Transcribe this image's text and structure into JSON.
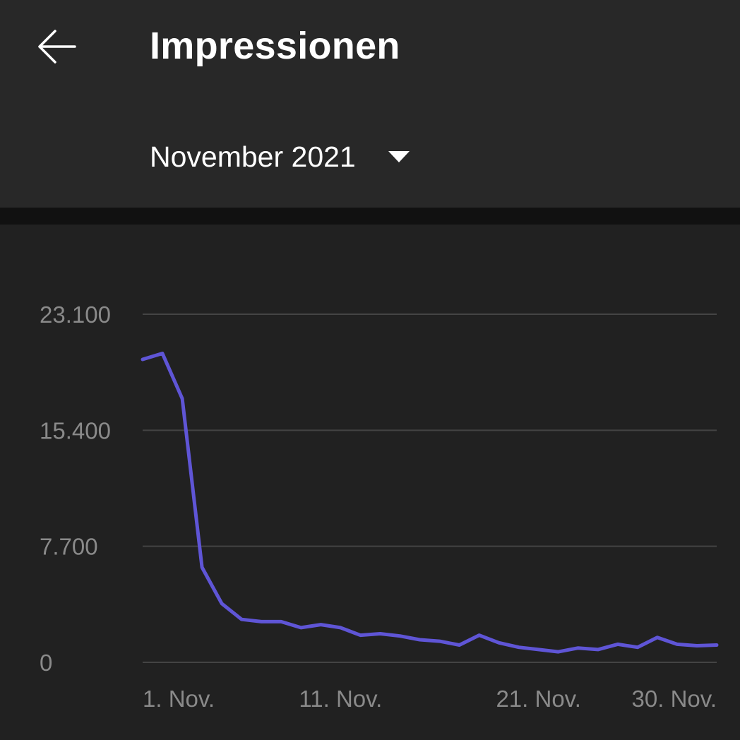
{
  "header": {
    "title": "Impressionen",
    "back_icon": "arrow-left-icon",
    "period": "November 2021",
    "period_icon": "dropdown-triangle-icon"
  },
  "colors": {
    "line": "#5f55d6",
    "grid": "#444444",
    "tick_text": "#8a8a8a",
    "background": "#212121",
    "header_background": "#282828"
  },
  "chart_data": {
    "type": "line",
    "title": "",
    "xlabel": "",
    "ylabel": "",
    "ylim": [
      0,
      23100
    ],
    "xlim": [
      1,
      30
    ],
    "y_ticks": [
      {
        "value": 0,
        "label": "0"
      },
      {
        "value": 7700,
        "label": "7.700"
      },
      {
        "value": 15400,
        "label": "15.400"
      },
      {
        "value": 23100,
        "label": "23.100"
      }
    ],
    "x_ticks": [
      {
        "value": 1,
        "label": "1. Nov."
      },
      {
        "value": 11,
        "label": "11. Nov."
      },
      {
        "value": 21,
        "label": "21. Nov."
      },
      {
        "value": 30,
        "label": "30. Nov."
      }
    ],
    "grid": true,
    "legend": "none",
    "series": [
      {
        "x": [
          1,
          2,
          3,
          4,
          5,
          6,
          7,
          8,
          9,
          10,
          11,
          12,
          13,
          14,
          15,
          16,
          17,
          18,
          19,
          20,
          21,
          22,
          23,
          24,
          25,
          26,
          27,
          28,
          29,
          30
        ],
        "values": [
          20100,
          20500,
          17500,
          6300,
          3900,
          2850,
          2700,
          2700,
          2300,
          2500,
          2300,
          1800,
          1900,
          1750,
          1500,
          1400,
          1150,
          1800,
          1300,
          1000,
          850,
          700,
          950,
          850,
          1200,
          1000,
          1650,
          1200,
          1100,
          1150
        ]
      }
    ]
  }
}
